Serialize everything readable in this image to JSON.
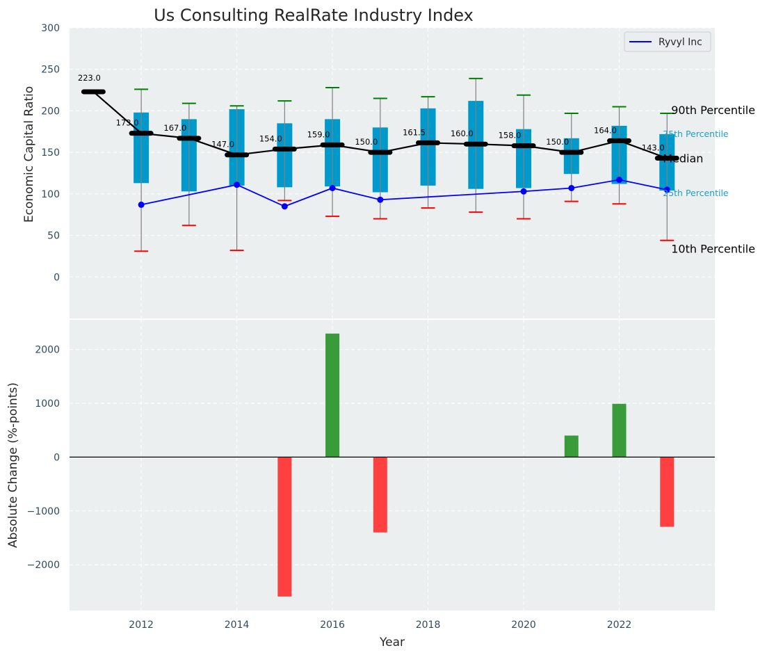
{
  "chart_data": [
    {
      "type": "bar",
      "panel": "top",
      "title": "Us Consulting RealRate Industry Index",
      "xlabel": "",
      "ylabel": "Economic Capital Ratio",
      "ylim": [
        -50,
        300
      ],
      "xlim": [
        2010.5,
        2024.0
      ],
      "yticks": [
        0,
        50,
        100,
        150,
        200,
        250,
        300
      ],
      "grid": true,
      "legend": {
        "placement": "top-right",
        "entries": [
          {
            "label": "Ryvyl Inc",
            "color": "#0000ff"
          }
        ]
      },
      "years": [
        2011,
        2012,
        2013,
        2014,
        2015,
        2016,
        2017,
        2018,
        2019,
        2020,
        2021,
        2022,
        2023
      ],
      "median": [
        223.0,
        173.0,
        167.0,
        147.0,
        154.0,
        159.0,
        150.0,
        161.5,
        160.0,
        158.0,
        150.0,
        164.0,
        143.0
      ],
      "median_labels": [
        "223.0",
        "173.0",
        "167.0",
        "147.0",
        "154.0",
        "159.0",
        "150.0",
        "161.5",
        "160.0",
        "158.0",
        "150.0",
        "164.0",
        "143.0"
      ],
      "p90": [
        null,
        226,
        209,
        206,
        212,
        228,
        215,
        217,
        239,
        219,
        197,
        205,
        197
      ],
      "p75": [
        null,
        198,
        190,
        202,
        185,
        190,
        180,
        203,
        212,
        178,
        167,
        182,
        172
      ],
      "p25": [
        null,
        113,
        103,
        110,
        108,
        109,
        102,
        110,
        106,
        107,
        124,
        112,
        104
      ],
      "p10": [
        null,
        31,
        62,
        32,
        92,
        73,
        70,
        83,
        78,
        70,
        91,
        88,
        44
      ],
      "company": {
        "name": "Ryvyl Inc",
        "years": [
          2012,
          2014,
          2015,
          2016,
          2017,
          2020,
          2021,
          2022,
          2023
        ],
        "values": [
          87,
          111,
          85,
          107,
          93,
          103,
          107,
          117,
          105
        ]
      },
      "annotations": {
        "p90": "90th Percentile",
        "p75": "75th Percentile",
        "median": "Median",
        "p25": "25th Percentile",
        "p10": "10th Percentile"
      },
      "colors": {
        "box": "#0099cc",
        "median": "#000000",
        "company": "#0000ff",
        "p90_cap": "#008000",
        "p10_cap": "#ff0000",
        "whisker": "#808080"
      }
    },
    {
      "type": "bar",
      "panel": "bottom",
      "title": "",
      "xlabel": "Year",
      "ylabel": "Absolute Change (%-points)",
      "ylim": [
        -2850,
        2550
      ],
      "yticks": [
        -2000,
        -1000,
        0,
        1000,
        2000
      ],
      "xticks": [
        2012,
        2014,
        2016,
        2018,
        2020,
        2022
      ],
      "grid": true,
      "categories": [
        2015,
        2016,
        2017,
        2021,
        2022,
        2023
      ],
      "values": [
        -2590,
        2295,
        -1400,
        400,
        990,
        -1295
      ],
      "colors": {
        "positive": "#3a9b3a",
        "negative": "#ff4040"
      }
    }
  ]
}
